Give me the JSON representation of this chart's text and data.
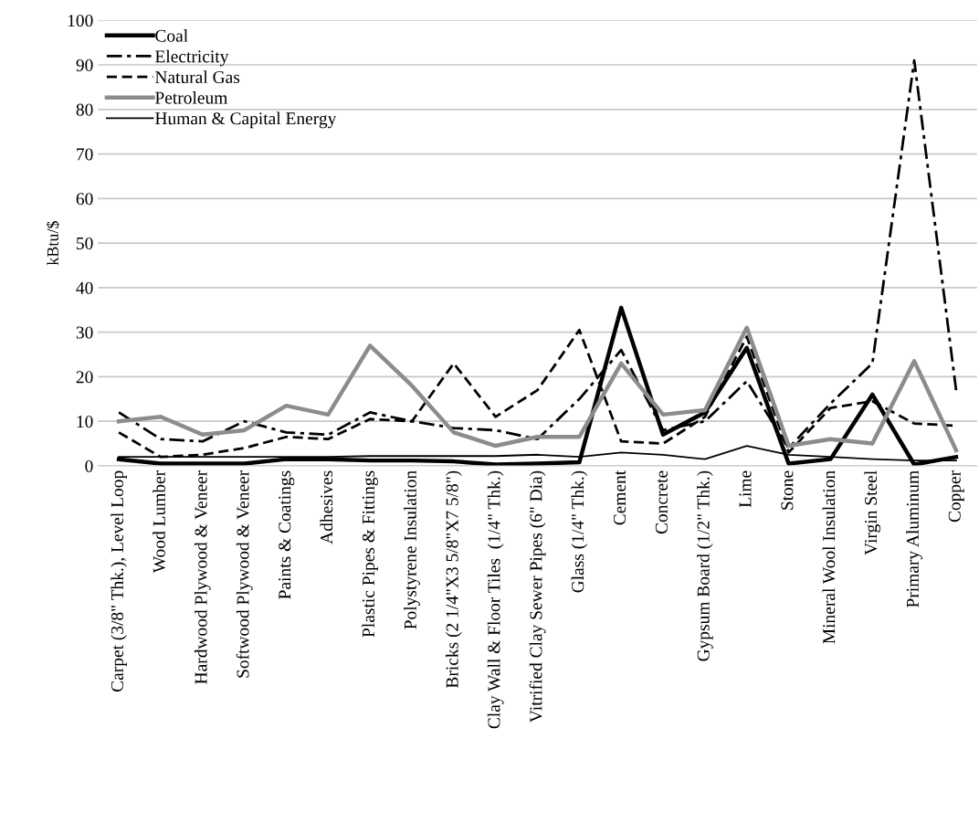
{
  "chart_data": {
    "type": "line",
    "ylabel": "kBtu/$",
    "categories": [
      "Carpet (3/8\" Thk.), Level Loop",
      "Wood Lumber",
      "Hardwood Plywood & Veneer",
      "Softwood Plywood & Veneer",
      "Paints & Coatings",
      "Adhesives",
      "Plastic Pipes & Fittings",
      "Polystyrene Insulation",
      "Bricks (2 1/4\"X3 5/8\"X7 5/8\")",
      "Clay Wall & Floor Tiles  (1/4\" Thk.)",
      "Vitrified Clay Sewer Pipes (6\" Dia)",
      "Glass (1/4\" Thk.)",
      "Cement",
      "Concrete",
      "Gypsum Board (1/2\" Thk.)",
      "Lime",
      "Stone",
      "Mineral Wool Insulation",
      "Virgin Steel",
      "Primary Aluminum",
      "Copper"
    ],
    "series": [
      {
        "name": "Coal",
        "color": "#000000",
        "line_style": "solid",
        "values": [
          1.5,
          0.5,
          0.5,
          0.5,
          1.5,
          1.5,
          1.2,
          1.2,
          1,
          0.3,
          0.5,
          0.8,
          35.5,
          7,
          12,
          26.5,
          0.5,
          1.5,
          16,
          0.3,
          2
        ]
      },
      {
        "name": "Electricity",
        "color": "#000000",
        "line_style": "dashdot",
        "values": [
          12,
          6,
          5.5,
          10,
          7.5,
          7,
          12,
          10,
          8.5,
          8,
          6,
          15,
          26,
          8,
          10,
          19,
          4,
          14,
          23,
          91,
          17
        ]
      },
      {
        "name": "Natural Gas",
        "color": "#000000",
        "line_style": "dashed",
        "values": [
          7.5,
          2,
          2.5,
          4,
          6.5,
          6,
          10.5,
          10,
          23,
          11,
          17,
          30.5,
          5.5,
          5,
          11,
          29,
          3,
          13,
          14.5,
          9.5,
          9
        ]
      },
      {
        "name": "Petroleum",
        "color": "#8c8c8c",
        "line_style": "solid",
        "values": [
          10,
          11,
          7,
          8,
          13.5,
          11.5,
          27,
          18,
          7.5,
          4.5,
          6.5,
          6.5,
          23,
          11.5,
          12.5,
          31,
          4.5,
          6,
          5,
          23.5,
          3.5
        ]
      },
      {
        "name": "Human & Capital Energy",
        "color": "#000000",
        "line_style": "solid",
        "values": [
          2,
          2,
          2,
          2,
          2,
          2,
          2.2,
          2.2,
          2.2,
          2.2,
          2.5,
          2,
          3,
          2.5,
          1.5,
          4.5,
          2.5,
          2,
          1.5,
          1.2,
          1.2
        ]
      }
    ],
    "ylim": [
      0,
      100
    ],
    "yticks": [
      0,
      10,
      20,
      30,
      40,
      50,
      60,
      70,
      80,
      90,
      100
    ],
    "grid": "y",
    "legend": "top left",
    "marker": "none"
  }
}
